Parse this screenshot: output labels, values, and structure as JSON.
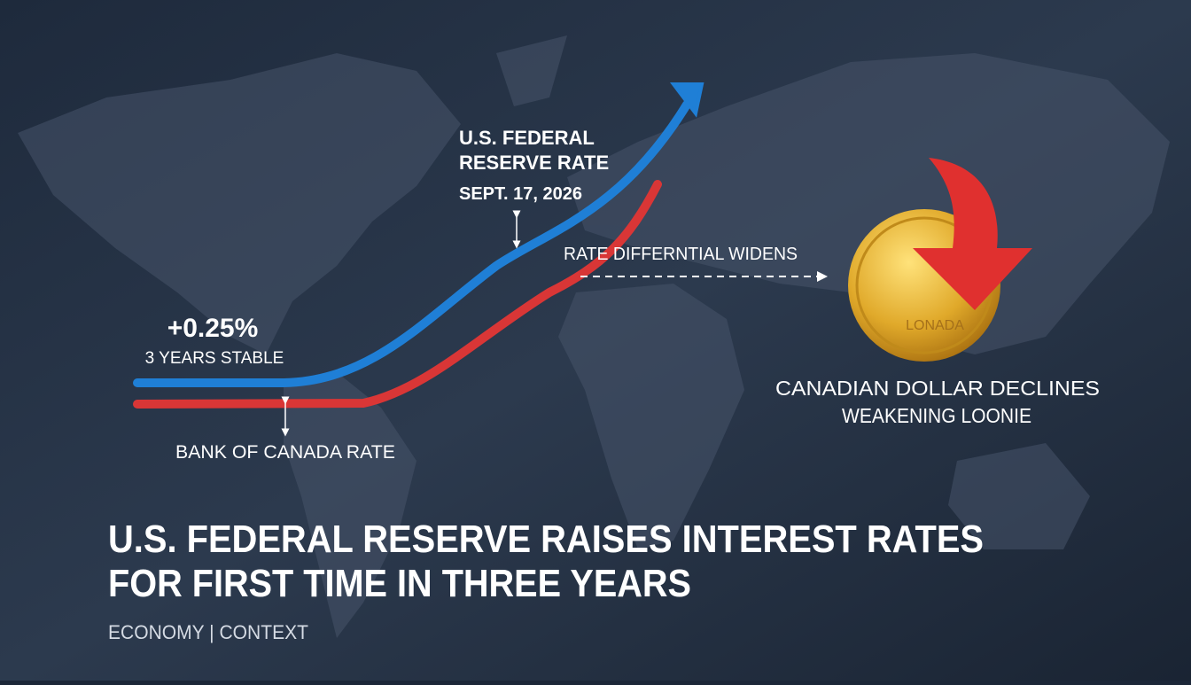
{
  "fed_label": {
    "lines": [
      "U.S. FEDERAL",
      "RESERVE RATE"
    ],
    "date": "SEPT. 17, 2026"
  },
  "differential": "RATE DIFFERNTIAL WIDENS",
  "change": {
    "amount": "+0.25%",
    "note": "3 YEARS STABLE"
  },
  "boc_label": "BANK OF CANADA RATE",
  "coin_text": "LONADA",
  "dollar": {
    "lines": [
      "CANADIAN DOLLAR DECLINES",
      "WEAKENING LOONIE"
    ]
  },
  "headline": {
    "lines": [
      "U.S. FEDERAL RESERVE RAISES INTEREST RATES",
      "FOR FIRST TIME IN THREE YEARS"
    ]
  },
  "footer": "ECONOMY | CONTEXT"
}
